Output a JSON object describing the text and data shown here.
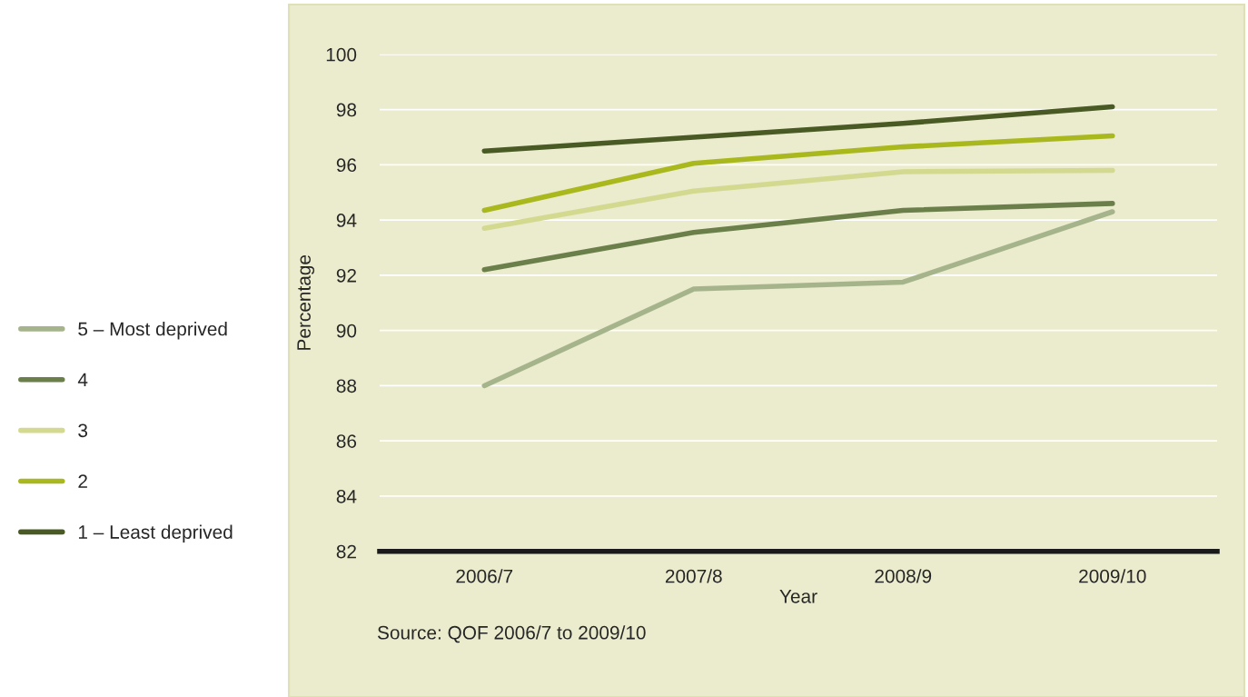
{
  "chart_data": {
    "type": "line",
    "xlabel": "Year",
    "ylabel": "Percentage",
    "categories": [
      "2006/7",
      "2007/8",
      "2008/9",
      "2009/10"
    ],
    "series": [
      {
        "name": "5 – Most deprived",
        "color": "#a6b48c",
        "values": [
          88.0,
          91.5,
          91.75,
          94.3
        ]
      },
      {
        "name": "4",
        "color": "#6b7f4a",
        "values": [
          92.2,
          93.55,
          94.35,
          94.6
        ]
      },
      {
        "name": "3",
        "color": "#d3d98f",
        "values": [
          93.7,
          95.05,
          95.75,
          95.8
        ]
      },
      {
        "name": "2",
        "color": "#a9b81d",
        "values": [
          94.35,
          96.05,
          96.65,
          97.05
        ]
      },
      {
        "name": "1 – Least deprived",
        "color": "#4a5a25",
        "values": [
          96.5,
          97.0,
          97.5,
          98.1
        ]
      }
    ],
    "ylim": [
      82,
      100
    ],
    "yticks": [
      82,
      84,
      86,
      88,
      90,
      92,
      94,
      96,
      98,
      100
    ],
    "grid": "y",
    "legend": "left",
    "marker": "none",
    "line_style": "solid",
    "annotations": [
      "Source: QOF 2006/7 to 2009/10"
    ]
  }
}
